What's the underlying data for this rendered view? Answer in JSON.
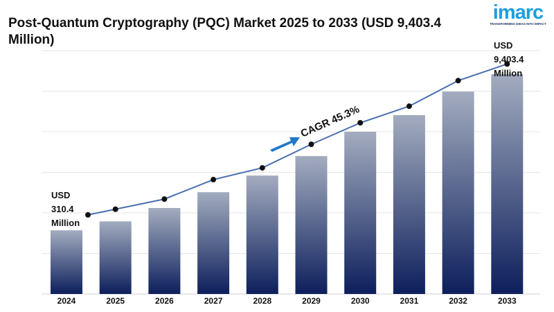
{
  "header": {
    "title": "Post-Quantum Cryptography (PQC) Market 2025 to 2033 (USD 9,403.4 Million)"
  },
  "logo": {
    "word": "imarc",
    "tagline": "TRANSFORMING IDEAS INTO IMPACT"
  },
  "chart_data": {
    "type": "bar",
    "title": "Post-Quantum Cryptography (PQC) Market 2025 to 2033 (USD 9,403.4 Million)",
    "categories": [
      "2024",
      "2025",
      "2026",
      "2027",
      "2028",
      "2029",
      "2030",
      "2031",
      "2032",
      "2033"
    ],
    "values": [
      1.57,
      1.79,
      2.12,
      2.51,
      2.92,
      3.4,
      4.0,
      4.41,
      4.99,
      5.42
    ],
    "trend_line": [
      1.95,
      2.09,
      2.34,
      2.82,
      3.11,
      3.69,
      4.22,
      4.63,
      5.26,
      5.67
    ],
    "ylim": [
      0,
      6
    ],
    "grid": true,
    "xlabel": "",
    "ylabel": "",
    "annotations": {
      "start": [
        "USD",
        "310.4",
        "Million"
      ],
      "end": [
        "USD",
        "9,403.4",
        "Million"
      ],
      "cagr": "CAGR 45.3%"
    },
    "colors": {
      "bar_top": "#a3acbf",
      "bar_bottom": "#0d1f5c",
      "line": "#4a6fb0",
      "arrow": "#1f78c8"
    }
  }
}
